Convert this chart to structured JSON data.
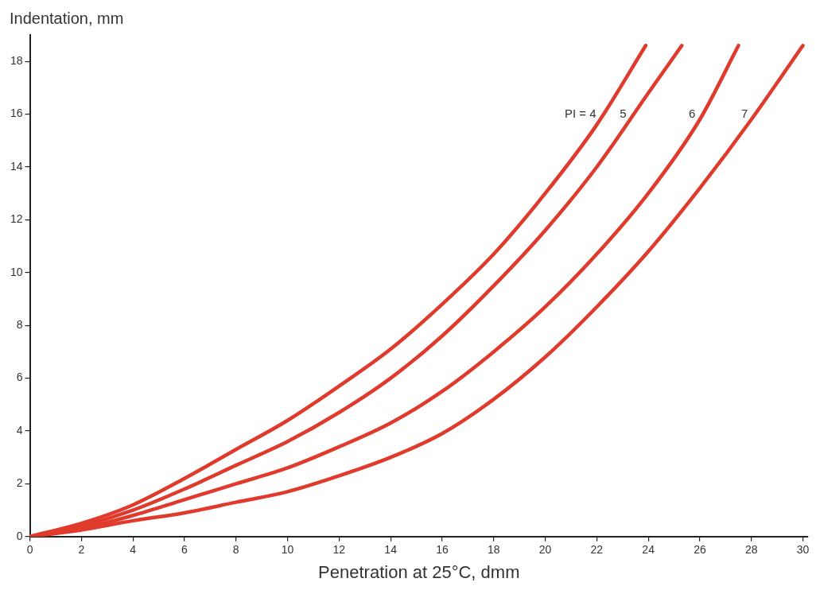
{
  "chart_data": {
    "type": "line",
    "xlabel": "Penetration at 25°C, dmm",
    "ylabel": "Indentation, mm",
    "xlim": [
      0,
      30.2
    ],
    "ylim": [
      0,
      19
    ],
    "xticks": [
      0,
      2,
      4,
      6,
      8,
      10,
      12,
      14,
      16,
      18,
      20,
      22,
      24,
      26,
      28,
      30
    ],
    "yticks": [
      0,
      2,
      4,
      6,
      8,
      10,
      12,
      14,
      16,
      18
    ],
    "grid": false,
    "legend": false,
    "marker": "none",
    "line_style": "solid",
    "series": [
      {
        "name": "PI = 4",
        "color": "#e03a2c",
        "x": [
          0,
          2,
          4,
          6,
          8,
          10,
          12,
          14,
          16,
          18,
          20,
          22,
          23.9
        ],
        "values": [
          0,
          0.5,
          1.2,
          2.2,
          3.3,
          4.4,
          5.7,
          7.1,
          8.8,
          10.7,
          13.0,
          15.6,
          18.6
        ]
      },
      {
        "name": "5",
        "color": "#e03a2c",
        "x": [
          0,
          2,
          4,
          6,
          8,
          10,
          12,
          14,
          16,
          18,
          20,
          22,
          24,
          25.3
        ],
        "values": [
          0,
          0.4,
          1.0,
          1.8,
          2.7,
          3.6,
          4.7,
          6.0,
          7.6,
          9.5,
          11.6,
          14.0,
          16.8,
          18.6
        ]
      },
      {
        "name": "6",
        "color": "#e03a2c",
        "x": [
          0,
          2,
          4,
          6,
          8,
          10,
          12,
          14,
          16,
          18,
          20,
          22,
          24,
          26,
          27.5
        ],
        "values": [
          0,
          0.3,
          0.8,
          1.4,
          2.0,
          2.6,
          3.4,
          4.3,
          5.5,
          7.0,
          8.7,
          10.7,
          13.0,
          15.8,
          18.6
        ]
      },
      {
        "name": "7",
        "color": "#e03a2c",
        "x": [
          0,
          2,
          4,
          6,
          8,
          10,
          12,
          14,
          16,
          18,
          20,
          22,
          24,
          26,
          28,
          30
        ],
        "values": [
          0,
          0.25,
          0.6,
          0.9,
          1.3,
          1.7,
          2.3,
          3.0,
          3.9,
          5.2,
          6.8,
          8.7,
          10.8,
          13.2,
          15.8,
          18.6
        ]
      }
    ]
  }
}
